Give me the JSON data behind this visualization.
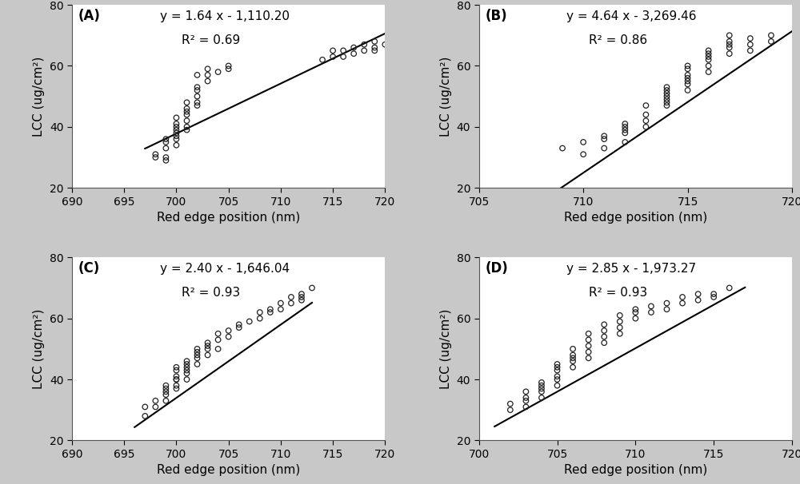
{
  "panels": [
    {
      "label": "(A)",
      "equation": "y = 1.64 x - 1,110.20",
      "r2": "R² = 0.69",
      "slope": 1.64,
      "intercept": -1110.2,
      "xlim": [
        690,
        720
      ],
      "ylim": [
        20,
        80
      ],
      "xticks": [
        690,
        695,
        700,
        705,
        710,
        715,
        720
      ],
      "yticks": [
        20,
        40,
        60,
        80
      ],
      "xlabel": "Red edge position (nm)",
      "ylabel": "LCC (ug/cm²)",
      "line_xmin": 697,
      "line_xmax": 720,
      "scatter_x": [
        698,
        698,
        699,
        699,
        699,
        699,
        699,
        700,
        700,
        700,
        700,
        700,
        700,
        700,
        700,
        701,
        701,
        701,
        701,
        701,
        701,
        701,
        702,
        702,
        702,
        702,
        702,
        702,
        703,
        703,
        703,
        704,
        705,
        705,
        714,
        715,
        715,
        716,
        716,
        717,
        717,
        718,
        718,
        719,
        719,
        719,
        720
      ],
      "scatter_y": [
        30,
        31,
        29,
        30,
        33,
        35,
        36,
        34,
        36,
        37,
        38,
        39,
        40,
        41,
        43,
        39,
        40,
        42,
        44,
        45,
        46,
        48,
        47,
        48,
        50,
        52,
        53,
        57,
        55,
        57,
        59,
        58,
        59,
        60,
        62,
        63,
        65,
        63,
        65,
        64,
        66,
        65,
        67,
        65,
        66,
        68,
        67
      ]
    },
    {
      "label": "(B)",
      "equation": "y = 4.64 x - 3,269.46",
      "r2": "R² = 0.86",
      "slope": 4.64,
      "intercept": -3269.46,
      "xlim": [
        705,
        720
      ],
      "ylim": [
        20,
        80
      ],
      "xticks": [
        705,
        710,
        715,
        720
      ],
      "yticks": [
        20,
        40,
        60,
        80
      ],
      "xlabel": "Red edge position (nm)",
      "ylabel": "LCC (ug/cm²)",
      "line_xmin": 707.5,
      "line_xmax": 720,
      "scatter_x": [
        709,
        710,
        710,
        711,
        711,
        711,
        712,
        712,
        712,
        712,
        712,
        713,
        713,
        713,
        713,
        714,
        714,
        714,
        714,
        714,
        714,
        714,
        715,
        715,
        715,
        715,
        715,
        715,
        715,
        716,
        716,
        716,
        716,
        716,
        716,
        717,
        717,
        717,
        717,
        717,
        718,
        718,
        718,
        719,
        719
      ],
      "scatter_y": [
        33,
        31,
        35,
        33,
        36,
        37,
        35,
        38,
        39,
        40,
        41,
        40,
        42,
        44,
        47,
        47,
        48,
        49,
        50,
        51,
        52,
        53,
        52,
        54,
        55,
        56,
        57,
        59,
        60,
        58,
        60,
        62,
        63,
        64,
        65,
        64,
        66,
        67,
        68,
        70,
        65,
        67,
        69,
        68,
        70
      ]
    },
    {
      "label": "(C)",
      "equation": "y = 2.40 x - 1,646.04",
      "r2": "R² = 0.93",
      "slope": 2.4,
      "intercept": -1646.04,
      "xlim": [
        690,
        720
      ],
      "ylim": [
        20,
        80
      ],
      "xticks": [
        690,
        695,
        700,
        705,
        710,
        715,
        720
      ],
      "yticks": [
        20,
        40,
        60,
        80
      ],
      "xlabel": "Red edge position (nm)",
      "ylabel": "LCC (ug/cm²)",
      "line_xmin": 696,
      "line_xmax": 713,
      "scatter_x": [
        697,
        697,
        698,
        698,
        699,
        699,
        699,
        699,
        699,
        700,
        700,
        700,
        700,
        700,
        700,
        700,
        701,
        701,
        701,
        701,
        701,
        701,
        702,
        702,
        702,
        702,
        702,
        703,
        703,
        703,
        703,
        704,
        704,
        704,
        705,
        705,
        706,
        706,
        707,
        708,
        708,
        709,
        709,
        710,
        710,
        711,
        711,
        712,
        712,
        712,
        713
      ],
      "scatter_y": [
        28,
        31,
        31,
        33,
        33,
        35,
        36,
        37,
        38,
        37,
        38,
        40,
        40,
        41,
        43,
        44,
        40,
        42,
        43,
        44,
        45,
        46,
        45,
        47,
        48,
        49,
        50,
        48,
        50,
        51,
        52,
        50,
        53,
        55,
        54,
        56,
        57,
        58,
        59,
        60,
        62,
        62,
        63,
        63,
        65,
        65,
        67,
        66,
        67,
        68,
        70
      ]
    },
    {
      "label": "(D)",
      "equation": "y = 2.85 x - 1,973.27",
      "r2": "R² = 0.93",
      "slope": 2.85,
      "intercept": -1973.27,
      "xlim": [
        700,
        720
      ],
      "ylim": [
        20,
        80
      ],
      "xticks": [
        700,
        705,
        710,
        715,
        720
      ],
      "yticks": [
        20,
        40,
        60,
        80
      ],
      "xlabel": "Red edge position (nm)",
      "ylabel": "LCC (ug/cm²)",
      "line_xmin": 701,
      "line_xmax": 717,
      "scatter_x": [
        702,
        702,
        703,
        703,
        703,
        703,
        704,
        704,
        704,
        704,
        704,
        705,
        705,
        705,
        705,
        705,
        705,
        706,
        706,
        706,
        706,
        706,
        707,
        707,
        707,
        707,
        707,
        708,
        708,
        708,
        708,
        709,
        709,
        709,
        709,
        710,
        710,
        710,
        711,
        711,
        712,
        712,
        713,
        713,
        714,
        714,
        715,
        715,
        716
      ],
      "scatter_y": [
        30,
        32,
        31,
        33,
        34,
        36,
        34,
        36,
        37,
        38,
        39,
        38,
        40,
        41,
        43,
        44,
        45,
        44,
        46,
        47,
        48,
        50,
        47,
        49,
        51,
        53,
        55,
        52,
        54,
        56,
        58,
        55,
        57,
        59,
        61,
        60,
        62,
        63,
        62,
        64,
        63,
        65,
        65,
        67,
        66,
        68,
        67,
        68,
        70
      ]
    }
  ],
  "fig_bg": "#c8c8c8",
  "panel_bg": "#ffffff",
  "marker_facecolor": "none",
  "marker_edgecolor": "#222222",
  "marker_size": 22,
  "marker_linewidth": 0.9,
  "line_color": "#000000",
  "line_width": 1.5,
  "label_fontsize": 11,
  "tick_fontsize": 10,
  "annotation_fontsize": 11,
  "panel_label_fontsize": 12
}
